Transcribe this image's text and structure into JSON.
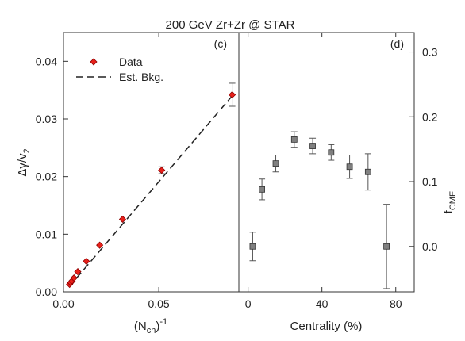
{
  "title": "200 GeV  Zr+Zr @ STAR",
  "colors": {
    "data_marker": "#e8201a",
    "data_marker_edge": "#8b0000",
    "fcme_marker": "#808080",
    "fcme_marker_edge": "#333333",
    "axis": "#333333"
  },
  "chart_data": [
    {
      "type": "scatter",
      "panel_label": "(c)",
      "xlabel": "(N",
      "xlabel_sub": "ch",
      "xlabel_sup": "-1",
      "xlabel_close": ")",
      "ylabel": "Δγ/v",
      "ylabel_sub": "2",
      "xlim": [
        0,
        0.092
      ],
      "ylim": [
        0,
        0.045
      ],
      "x_ticks": [
        0,
        0.05
      ],
      "x_tick_labels": [
        "0.00",
        "0.05"
      ],
      "y_ticks": [
        0,
        0.01,
        0.02,
        0.03,
        0.04
      ],
      "y_tick_labels": [
        "0.00",
        "0.01",
        "0.02",
        "0.03",
        "0.04"
      ],
      "legend": {
        "placement": "top-left",
        "data_label": "Data",
        "bkg_label": "Est. Bkg."
      },
      "series": [
        {
          "name": "Data",
          "style": "diamond",
          "x": [
            0.0032,
            0.0038,
            0.0045,
            0.0055,
            0.0075,
            0.012,
            0.019,
            0.031,
            0.0515,
            0.0885
          ],
          "y": [
            0.0013,
            0.0016,
            0.0019,
            0.0024,
            0.0035,
            0.0053,
            0.0081,
            0.0126,
            0.0211,
            0.0342
          ],
          "yerr": [
            0.0001,
            0.0001,
            0.0001,
            0.0002,
            0.0002,
            0.0002,
            0.0003,
            0.0004,
            0.0006,
            0.002
          ]
        },
        {
          "name": "Est. Bkg.",
          "style": "dashed",
          "x": [
            0.003,
            0.0885
          ],
          "y": [
            0.0009,
            0.034
          ]
        }
      ]
    },
    {
      "type": "scatter",
      "panel_label": "(d)",
      "xlabel": "Centrality (%)",
      "ylabel": "f",
      "ylabel_sub": "CME",
      "xlim": [
        -5,
        90
      ],
      "ylim": [
        -0.07,
        0.33
      ],
      "x_ticks": [
        0,
        40,
        80
      ],
      "x_tick_labels": [
        "0",
        "40",
        "80"
      ],
      "y_ticks": [
        0,
        0.1,
        0.2,
        0.3
      ],
      "y_tick_labels": [
        "0.0",
        "0.1",
        "0.2",
        "0.3"
      ],
      "series": [
        {
          "style": "square",
          "x": [
            2.5,
            7.5,
            15,
            25,
            35,
            45,
            55,
            65,
            75
          ],
          "y": [
            0.0,
            0.088,
            0.128,
            0.165,
            0.155,
            0.145,
            0.123,
            0.115,
            0.0
          ],
          "yerr": [
            0.022,
            0.016,
            0.013,
            0.012,
            0.012,
            0.012,
            0.018,
            0.028,
            0.065
          ]
        }
      ]
    }
  ]
}
